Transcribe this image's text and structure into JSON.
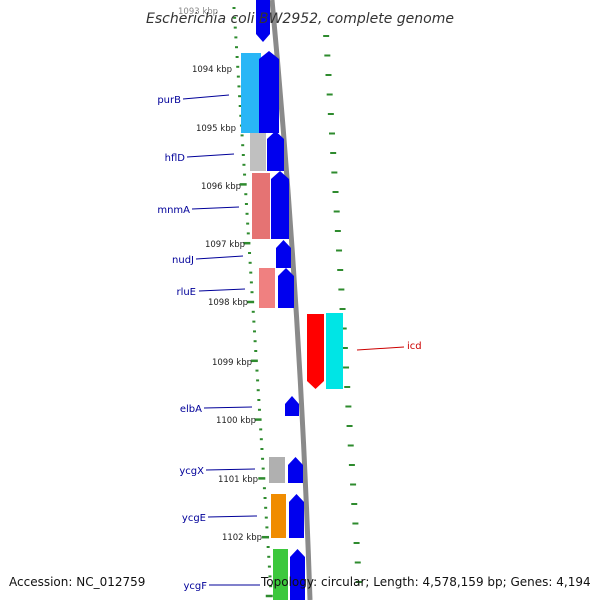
{
  "title": "Escherichia coli BW2952, complete genome",
  "partial_top_label": "1093 kbp",
  "footer": {
    "accession": "Accession: NC_012759",
    "topology": "Topology: circular; Length: 4,578,159 bp; Genes: 4,194"
  },
  "colors": {
    "backbone": "#8a8a8a",
    "tick": "#2e8b2e",
    "cds": "#0000ee",
    "label_left": "#000099",
    "label_right": "#cc0000"
  },
  "kbp_labels": [
    "1094 kbp",
    "1095 kbp",
    "1096 kbp",
    "1097 kbp",
    "1098 kbp",
    "1099 kbp",
    "1100 kbp",
    "1101 kbp",
    "1102 kbp"
  ],
  "genes_left": [
    {
      "name": "purB",
      "color": "#29b6f6"
    },
    {
      "name": "hflD",
      "color": "#c0c0c0"
    },
    {
      "name": "mnmA",
      "color": "#e57373"
    },
    {
      "name": "nudJ",
      "color": ""
    },
    {
      "name": "rluE",
      "color": "#f08080"
    },
    {
      "name": "elbA",
      "color": ""
    },
    {
      "name": "ycgX",
      "color": "#b0b0b0"
    },
    {
      "name": "ycgE",
      "color": "#f08c00"
    },
    {
      "name": "ycgF",
      "color": "#3cc83c"
    }
  ],
  "genes_right": [
    {
      "name": "icd",
      "color": "#ff0000",
      "cds_color": "#00e5e5"
    }
  ]
}
